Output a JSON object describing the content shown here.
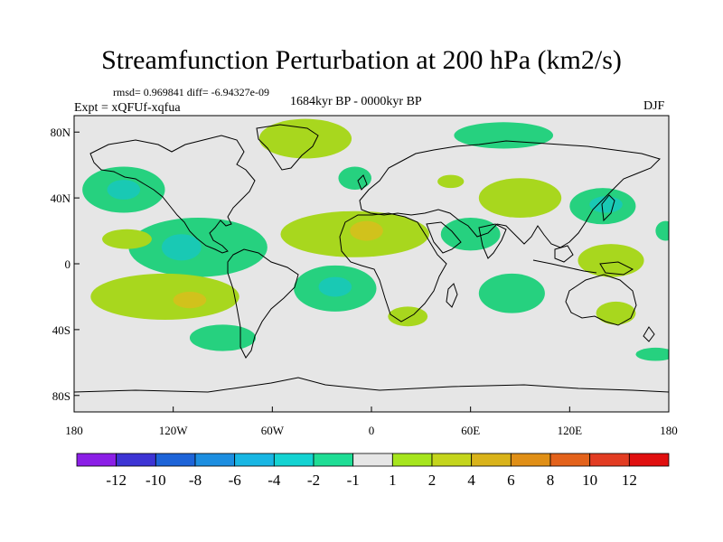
{
  "title": "Streamfunction Perturbation at 200 hPa (km2/s)",
  "stats": "rmsd= 0.969841 diff= -6.94327e-09",
  "experiment": "Expt = xQFUf-xqfua",
  "period": "1684kyr BP - 0000kyr BP",
  "season": "DJF",
  "colors": {
    "ocean_background": "#e6e6e6",
    "coastline": "#000000",
    "neg_minus1": "#26d17f",
    "neg_minus2": "#19c9b4",
    "pos_1": "#a8d71e",
    "pos_2": "#d1c21c"
  },
  "map": {
    "lon_range": [
      -180,
      180
    ],
    "lat_range": [
      -90,
      90
    ],
    "x_ticks": [
      {
        "lon": -180,
        "label": "180"
      },
      {
        "lon": -120,
        "label": "120W"
      },
      {
        "lon": -60,
        "label": "60W"
      },
      {
        "lon": 0,
        "label": "0"
      },
      {
        "lon": 60,
        "label": "60E"
      },
      {
        "lon": 120,
        "label": "120E"
      },
      {
        "lon": 180,
        "label": "180"
      }
    ],
    "y_ticks": [
      {
        "lat": 80,
        "label": "80N"
      },
      {
        "lat": 40,
        "label": "40N"
      },
      {
        "lat": 0,
        "label": "0"
      },
      {
        "lat": -40,
        "label": "40S"
      },
      {
        "lat": -80,
        "label": "80S"
      }
    ]
  },
  "anomaly_regions": [
    {
      "name": "greenland-high",
      "lon": -40,
      "lat": 76,
      "rlon": 28,
      "rlat": 12,
      "level": "1"
    },
    {
      "name": "arctic-siberia-high",
      "lon": 80,
      "lat": 78,
      "rlon": 30,
      "rlat": 8,
      "level": "-1"
    },
    {
      "name": "north-pacific-low",
      "lon": -150,
      "lat": 45,
      "rlon": 25,
      "rlat": 14,
      "level": "-1"
    },
    {
      "name": "north-pacific-low-core",
      "lon": -150,
      "lat": 45,
      "rlon": 10,
      "rlat": 6,
      "level": "-2"
    },
    {
      "name": "north-atlantic-low",
      "lon": -10,
      "lat": 52,
      "rlon": 10,
      "rlat": 7,
      "level": "-1"
    },
    {
      "name": "europe-high",
      "lon": 48,
      "lat": 50,
      "rlon": 8,
      "rlat": 4,
      "level": "1"
    },
    {
      "name": "central-asia-high",
      "lon": 90,
      "lat": 40,
      "rlon": 25,
      "rlat": 12,
      "level": "1"
    },
    {
      "name": "japan-low",
      "lon": 140,
      "lat": 35,
      "rlon": 20,
      "rlat": 11,
      "level": "-1"
    },
    {
      "name": "japan-low-core",
      "lon": 142,
      "lat": 36,
      "rlon": 10,
      "rlat": 5,
      "level": "-2"
    },
    {
      "name": "tropical-atlantic-africa-high",
      "lon": -10,
      "lat": 18,
      "rlon": 45,
      "rlat": 14,
      "level": "1"
    },
    {
      "name": "sahara-high-core",
      "lon": -3,
      "lat": 20,
      "rlon": 10,
      "rlat": 6,
      "level": "2"
    },
    {
      "name": "arabia-low",
      "lon": 60,
      "lat": 18,
      "rlon": 18,
      "rlat": 10,
      "level": "-1"
    },
    {
      "name": "central-america-low",
      "lon": -105,
      "lat": 10,
      "rlon": 42,
      "rlat": 18,
      "level": "-1"
    },
    {
      "name": "central-america-low-core",
      "lon": -115,
      "lat": 10,
      "rlon": 12,
      "rlat": 8,
      "level": "-2"
    },
    {
      "name": "east-pacific-high",
      "lon": -148,
      "lat": 15,
      "rlon": 15,
      "rlat": 6,
      "level": "1"
    },
    {
      "name": "south-pacific-high",
      "lon": -125,
      "lat": -20,
      "rlon": 45,
      "rlat": 14,
      "level": "1"
    },
    {
      "name": "south-pacific-high-core",
      "lon": -110,
      "lat": -22,
      "rlon": 10,
      "rlat": 5,
      "level": "2"
    },
    {
      "name": "south-atlantic-low",
      "lon": -22,
      "lat": -15,
      "rlon": 25,
      "rlat": 14,
      "level": "-1"
    },
    {
      "name": "south-atlantic-low-core",
      "lon": -22,
      "lat": -14,
      "rlon": 10,
      "rlat": 6,
      "level": "-2"
    },
    {
      "name": "southeast-pacific-low",
      "lon": -90,
      "lat": -45,
      "rlon": 20,
      "rlat": 8,
      "level": "-1"
    },
    {
      "name": "south-africa-high",
      "lon": 22,
      "lat": -32,
      "rlon": 12,
      "rlat": 6,
      "level": "1"
    },
    {
      "name": "indian-ocean-low",
      "lon": 85,
      "lat": -18,
      "rlon": 20,
      "rlat": 12,
      "level": "-1"
    },
    {
      "name": "indonesia-high",
      "lon": 145,
      "lat": 2,
      "rlon": 20,
      "rlat": 10,
      "level": "1"
    },
    {
      "name": "australia-high",
      "lon": 148,
      "lat": -30,
      "rlon": 12,
      "rlat": 7,
      "level": "1"
    },
    {
      "name": "dateline-low",
      "lon": 178,
      "lat": 20,
      "rlon": 6,
      "rlat": 6,
      "level": "-1"
    },
    {
      "name": "southwest-pacific-low",
      "lon": 172,
      "lat": -55,
      "rlon": 12,
      "rlat": 4,
      "level": "-1"
    }
  ],
  "colorbar": {
    "colors": [
      "#8b1fe6",
      "#3d34d4",
      "#1d64d8",
      "#1c8ee0",
      "#18b6e3",
      "#14d3d2",
      "#1fdd95",
      "#e6e6e6",
      "#a6e51d",
      "#c4d51c",
      "#d9b31a",
      "#e08f16",
      "#e3621b",
      "#e23c22",
      "#e00f0f"
    ],
    "labels": [
      "-12",
      "-10",
      "-8",
      "-6",
      "-4",
      "-2",
      "-1",
      "1",
      "2",
      "4",
      "6",
      "8",
      "10",
      "12"
    ]
  }
}
